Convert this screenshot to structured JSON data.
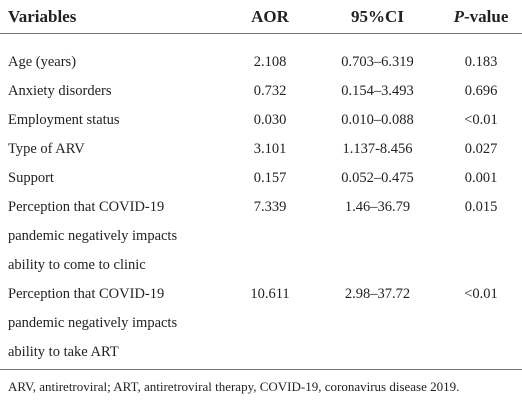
{
  "table": {
    "header": {
      "variable": "Variables",
      "aor": "AOR",
      "ci": "95%CI",
      "p_value": {
        "italic": "P",
        "rest": "-value"
      }
    },
    "rows": [
      [
        "Age (years)",
        "2.108",
        "0.703–6.319",
        "0.183"
      ],
      [
        "Anxiety disorders",
        "0.732",
        "0.154–3.493",
        "0.696"
      ],
      [
        "Employment status",
        "0.030",
        "0.010–0.088",
        "<0.01"
      ],
      [
        "Type of ARV",
        "3.101",
        "1.137-8.456",
        "0.027"
      ],
      [
        "Support",
        "0.157",
        "0.052–0.475",
        "0.001"
      ],
      [
        "Perception that COVID-19 pandemic negatively impacts ability to come to clinic",
        "7.339",
        "1.46–36.79",
        "0.015"
      ],
      [
        "Perception that COVID-19 pandemic negatively impacts ability to take ART",
        "10.611",
        "2.98–37.72",
        "<0.01"
      ]
    ],
    "footnote": "ARV, antiretroviral; ART, antiretroviral therapy, COVID-19, coronavirus disease 2019."
  }
}
